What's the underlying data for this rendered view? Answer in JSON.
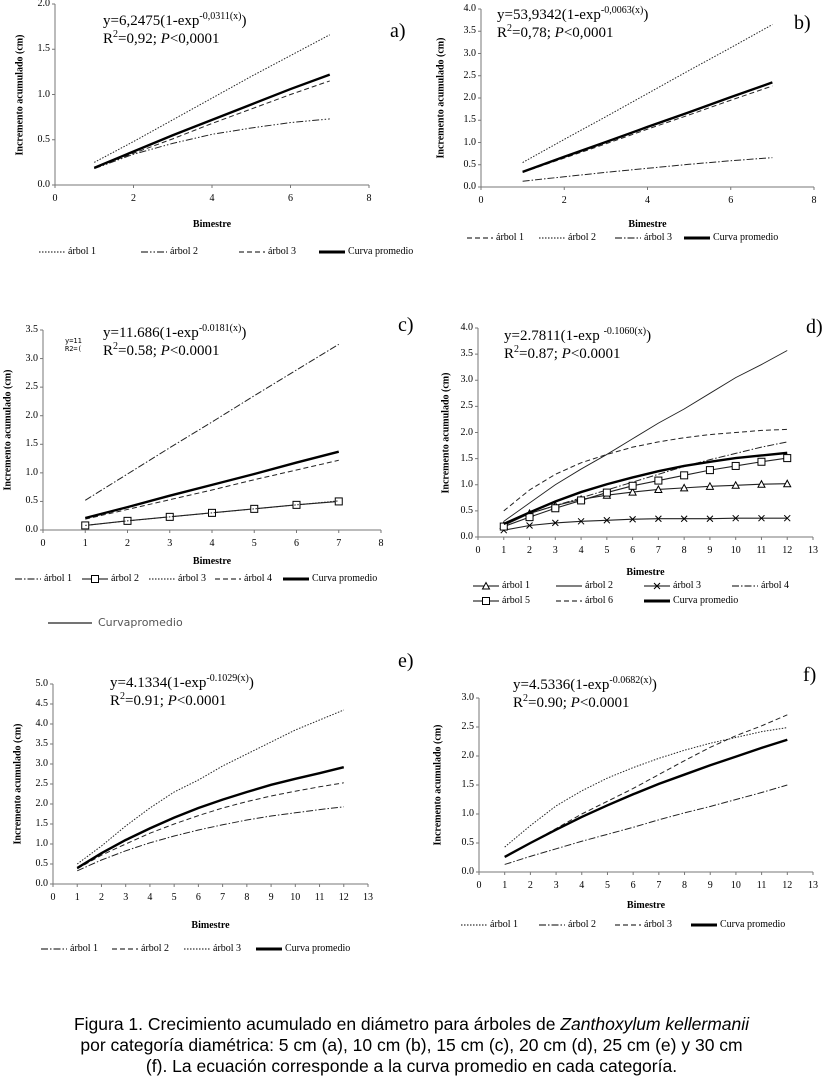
{
  "chart_data": [
    {
      "panel": "a)",
      "type": "line",
      "xlabel": "Bimestre",
      "ylabel": "Incremento acumulado (cm)",
      "xlim": [
        0,
        8
      ],
      "ylim": [
        0,
        2.0
      ],
      "xticks": [
        "0",
        "2",
        "4",
        "6",
        "8"
      ],
      "yticks": [
        "0.0",
        "0.5",
        "1.0",
        "1.5",
        "2.0"
      ],
      "equation": {
        "main": "y=6,2475(1-exp",
        "exp": "-0,0311(x)",
        "close": ")",
        "r": "R",
        "r_sup": "2",
        "r_val": "=0,92; ",
        "p": "P",
        "p_val": "<0,0001"
      },
      "x": [
        1,
        2,
        3,
        4,
        5,
        6,
        7
      ],
      "series": [
        {
          "name": "árbol 1",
          "style": "dotted",
          "marker": "none",
          "y": [
            0.25,
            0.48,
            0.72,
            0.96,
            1.2,
            1.43,
            1.66
          ]
        },
        {
          "name": "árbol 2",
          "style": "dashdotdot",
          "marker": "none",
          "y": [
            0.18,
            0.34,
            0.46,
            0.56,
            0.63,
            0.69,
            0.73
          ]
        },
        {
          "name": "árbol 3",
          "style": "dashed",
          "marker": "none",
          "y": [
            0.19,
            0.35,
            0.51,
            0.68,
            0.84,
            1.0,
            1.15
          ]
        },
        {
          "name": "Curva promedio",
          "style": "bold",
          "marker": "none",
          "y": [
            0.19,
            0.37,
            0.55,
            0.72,
            0.89,
            1.06,
            1.22
          ]
        }
      ]
    },
    {
      "panel": "b)",
      "type": "line",
      "xlabel": "Bimestre",
      "ylabel": "Incremento acumulado (cm)",
      "xlim": [
        0,
        8
      ],
      "ylim": [
        0,
        4.0
      ],
      "xticks": [
        "0",
        "2",
        "4",
        "6",
        "8"
      ],
      "yticks": [
        "0.0",
        "0.5",
        "1.0",
        "1.5",
        "2.0",
        "2.5",
        "3.0",
        "3.5",
        "4.0"
      ],
      "equation": {
        "main": "y=53,9342(1-exp",
        "exp": "-0,0063(x)",
        "close": ")",
        "r": "R",
        "r_sup": "2",
        "r_val": "=0,78; ",
        "p": "P",
        "p_val": "<0,0001"
      },
      "x": [
        1,
        2,
        3,
        4,
        5,
        6,
        7
      ],
      "series": [
        {
          "name": "árbol 1",
          "style": "dashed",
          "marker": "none",
          "y": [
            0.33,
            0.65,
            0.97,
            1.3,
            1.62,
            1.95,
            2.27
          ]
        },
        {
          "name": "árbol 2",
          "style": "dotted",
          "marker": "none",
          "y": [
            0.55,
            1.07,
            1.58,
            2.1,
            2.62,
            3.13,
            3.65
          ]
        },
        {
          "name": "árbol 3",
          "style": "dashdot",
          "marker": "none",
          "y": [
            0.13,
            0.23,
            0.33,
            0.42,
            0.51,
            0.59,
            0.66
          ]
        },
        {
          "name": "Curva promedio",
          "style": "bold",
          "marker": "none",
          "y": [
            0.34,
            0.68,
            1.01,
            1.35,
            1.68,
            2.02,
            2.35
          ]
        }
      ]
    },
    {
      "panel": "c)",
      "type": "line",
      "xlabel": "Bimestre",
      "ylabel": "Incremento acumulado (cm)",
      "xlim": [
        0,
        8
      ],
      "ylim": [
        0,
        3.5
      ],
      "xticks": [
        "0",
        "1",
        "2",
        "3",
        "4",
        "5",
        "6",
        "7",
        "8"
      ],
      "yticks": [
        "0.0",
        "0.5",
        "1.0",
        "1.5",
        "2.0",
        "2.5",
        "3.0",
        "3.5"
      ],
      "equation": {
        "main": "y=11.686(1-exp",
        "exp": "-0.0181(x)",
        "close": ")",
        "r": "R",
        "r_sup": "2",
        "r_val": "=0.58; ",
        "p": "P",
        "p_val": "<0.0001"
      },
      "artifact": [
        "y=11",
        "R2=("
      ],
      "extra_legend": "Curvapromedio",
      "x": [
        1,
        2,
        3,
        4,
        5,
        6,
        7
      ],
      "series": [
        {
          "name": "árbol 1",
          "style": "dashdot",
          "marker": "none",
          "y": [
            0.52,
            0.98,
            1.44,
            1.89,
            2.35,
            2.8,
            3.25
          ]
        },
        {
          "name": "árbol 2",
          "style": "solid",
          "marker": "square",
          "y": [
            0.08,
            0.16,
            0.23,
            0.3,
            0.37,
            0.44,
            0.5
          ]
        },
        {
          "name": "árbol 3",
          "style": "dotted",
          "marker": "none",
          "y": [
            0.08,
            0.16,
            0.23,
            0.3,
            0.37,
            0.44,
            0.51
          ]
        },
        {
          "name": "árbol 4",
          "style": "dashed",
          "marker": "none",
          "y": [
            0.19,
            0.36,
            0.53,
            0.7,
            0.88,
            1.05,
            1.22
          ]
        },
        {
          "name": "Curva promedio",
          "style": "bold",
          "marker": "none",
          "y": [
            0.21,
            0.4,
            0.6,
            0.79,
            0.98,
            1.18,
            1.37
          ]
        }
      ]
    },
    {
      "panel": "d)",
      "type": "line",
      "xlabel": "Bimestre",
      "ylabel": "Incremento acumulado (cm)",
      "xlim": [
        0,
        13
      ],
      "ylim": [
        0,
        4.0
      ],
      "xticks": [
        "0",
        "1",
        "2",
        "3",
        "4",
        "5",
        "6",
        "7",
        "8",
        "9",
        "10",
        "11",
        "12",
        "13"
      ],
      "yticks": [
        "0.0",
        "0.5",
        "1.0",
        "1.5",
        "2.0",
        "2.5",
        "3.0",
        "3.5",
        "4.0"
      ],
      "equation": {
        "main": "y=2.7811(1-exp ",
        "exp": "-0.1060(x)",
        "close": ")",
        "r": "R",
        "r_sup": "2",
        "r_val": "=0.87; ",
        "p": "P",
        "p_val": "<0.0001"
      },
      "x": [
        1,
        2,
        3,
        4,
        5,
        6,
        7,
        8,
        9,
        10,
        11,
        12
      ],
      "series": [
        {
          "name": "árbol 1",
          "style": "solid",
          "marker": "triangle",
          "y": [
            0.22,
            0.45,
            0.6,
            0.72,
            0.8,
            0.86,
            0.91,
            0.94,
            0.97,
            0.99,
            1.01,
            1.02
          ]
        },
        {
          "name": "árbol 2",
          "style": "thin",
          "marker": "none",
          "y": [
            0.3,
            0.65,
            1.0,
            1.3,
            1.58,
            1.88,
            2.18,
            2.45,
            2.75,
            3.05,
            3.3,
            3.57
          ]
        },
        {
          "name": "árbol 3",
          "style": "solid",
          "marker": "cross",
          "y": [
            0.13,
            0.22,
            0.27,
            0.3,
            0.32,
            0.34,
            0.35,
            0.35,
            0.35,
            0.36,
            0.36,
            0.36
          ]
        },
        {
          "name": "árbol 4",
          "style": "dashdot",
          "marker": "none",
          "y": [
            0.25,
            0.45,
            0.6,
            0.75,
            0.9,
            1.05,
            1.2,
            1.35,
            1.48,
            1.6,
            1.72,
            1.82
          ]
        },
        {
          "name": "árbol 5",
          "style": "solid",
          "marker": "square",
          "y": [
            0.2,
            0.38,
            0.55,
            0.7,
            0.85,
            0.98,
            1.08,
            1.18,
            1.28,
            1.36,
            1.44,
            1.51
          ]
        },
        {
          "name": "árbol 6",
          "style": "dashed",
          "marker": "none",
          "y": [
            0.5,
            0.9,
            1.2,
            1.42,
            1.58,
            1.72,
            1.82,
            1.9,
            1.96,
            2.0,
            2.04,
            2.06
          ]
        },
        {
          "name": "Curva promedio",
          "style": "bold",
          "marker": "none",
          "y": [
            0.25,
            0.47,
            0.68,
            0.86,
            1.01,
            1.14,
            1.26,
            1.36,
            1.44,
            1.51,
            1.56,
            1.61
          ]
        }
      ]
    },
    {
      "panel": "e)",
      "type": "line",
      "xlabel": "Bimestre",
      "ylabel": "Incremento acumulado (cm)",
      "xlim": [
        0,
        13
      ],
      "ylim": [
        0,
        5.0
      ],
      "xticks": [
        "0",
        "1",
        "2",
        "3",
        "4",
        "5",
        "6",
        "7",
        "8",
        "9",
        "10",
        "11",
        "12",
        "13"
      ],
      "yticks": [
        "0.0",
        "0.5",
        "1.0",
        "1.5",
        "2.0",
        "2.5",
        "3.0",
        "3.5",
        "4.0",
        "4.5",
        "5.0"
      ],
      "equation": {
        "main": "y=4.1334(1-exp",
        "exp": "-0.1029(x)",
        "close": ")",
        "r": "R",
        "r_sup": "2",
        "r_val": "=0.91; ",
        "p": "P",
        "p_val": "<0.0001"
      },
      "x": [
        1,
        2,
        3,
        4,
        5,
        6,
        7,
        8,
        9,
        10,
        11,
        12
      ],
      "series": [
        {
          "name": "árbol 1",
          "style": "dashdot",
          "marker": "none",
          "y": [
            0.33,
            0.6,
            0.83,
            1.03,
            1.2,
            1.35,
            1.48,
            1.6,
            1.7,
            1.78,
            1.86,
            1.93
          ]
        },
        {
          "name": "árbol 2",
          "style": "dashed",
          "marker": "none",
          "y": [
            0.38,
            0.72,
            1.0,
            1.27,
            1.5,
            1.71,
            1.9,
            2.06,
            2.2,
            2.32,
            2.43,
            2.53
          ]
        },
        {
          "name": "árbol 3",
          "style": "dotted",
          "marker": "none",
          "y": [
            0.5,
            0.95,
            1.45,
            1.9,
            2.3,
            2.6,
            2.95,
            3.25,
            3.55,
            3.85,
            4.1,
            4.35
          ]
        },
        {
          "name": "Curva promedio",
          "style": "bold",
          "marker": "none",
          "y": [
            0.4,
            0.77,
            1.1,
            1.39,
            1.66,
            1.9,
            2.11,
            2.3,
            2.48,
            2.63,
            2.77,
            2.92
          ]
        }
      ]
    },
    {
      "panel": "f)",
      "type": "line",
      "xlabel": "Bimestre",
      "ylabel": "Incremento acumulado (cm)",
      "xlim": [
        0,
        13
      ],
      "ylim": [
        0,
        3.0
      ],
      "xticks": [
        "0",
        "1",
        "2",
        "3",
        "4",
        "5",
        "6",
        "7",
        "8",
        "9",
        "10",
        "11",
        "12",
        "13"
      ],
      "yticks": [
        "0.0",
        "0.5",
        "1.0",
        "1.5",
        "2.0",
        "2.5",
        "3.0"
      ],
      "equation": {
        "main": "y=4.5336(1-exp",
        "exp": "-0.0682(x)",
        "close": ")",
        "r": "R",
        "r_sup": "2",
        "r_val": "=0.90; ",
        "p": "P",
        "p_val": "<0.0001"
      },
      "x": [
        1,
        2,
        3,
        4,
        5,
        6,
        7,
        8,
        9,
        10,
        11,
        12
      ],
      "series": [
        {
          "name": "árbol 1",
          "style": "dotted",
          "marker": "none",
          "y": [
            0.43,
            0.8,
            1.14,
            1.4,
            1.62,
            1.8,
            1.96,
            2.1,
            2.22,
            2.32,
            2.42,
            2.49
          ]
        },
        {
          "name": "árbol 2",
          "style": "dashdot",
          "marker": "none",
          "y": [
            0.13,
            0.27,
            0.4,
            0.53,
            0.65,
            0.77,
            0.9,
            1.02,
            1.13,
            1.25,
            1.37,
            1.5
          ]
        },
        {
          "name": "árbol 3",
          "style": "dashed",
          "marker": "none",
          "y": [
            0.26,
            0.5,
            0.75,
            1.0,
            1.22,
            1.44,
            1.68,
            1.92,
            2.15,
            2.35,
            2.52,
            2.71
          ]
        },
        {
          "name": "Curva promedio",
          "style": "bold",
          "marker": "none",
          "y": [
            0.26,
            0.5,
            0.73,
            0.95,
            1.15,
            1.34,
            1.52,
            1.68,
            1.84,
            1.99,
            2.14,
            2.28
          ]
        }
      ]
    }
  ],
  "caption": {
    "line1_pre": "Figura 1. Crecimiento acumulado en diámetro para árboles de ",
    "species": "Zanthoxylum kellermanii",
    "line2": "por categoría diamétrica: 5 cm (a), 10 cm (b), 15 cm (c), 20 cm (d), 25 cm (e) y 30 cm",
    "line3": "(f). La ecuación corresponde a la curva promedio en cada categoría."
  }
}
